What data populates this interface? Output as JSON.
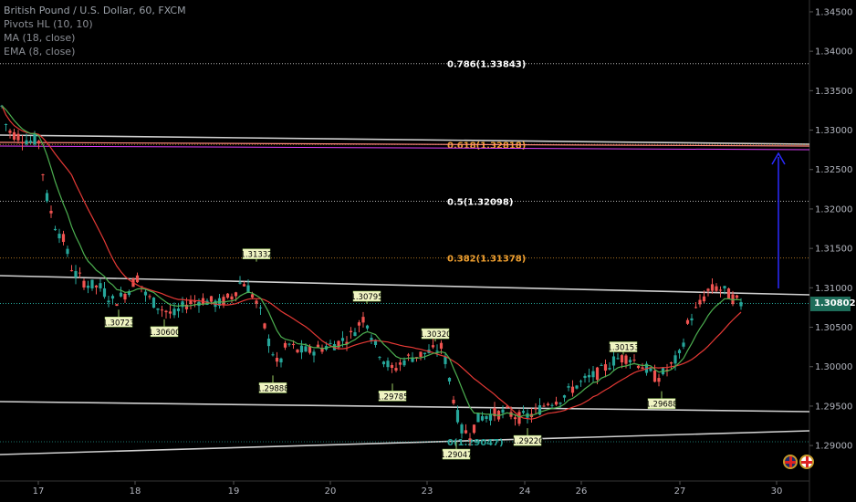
{
  "legend": {
    "title": "British Pound / U.S. Dollar, 60, FXCM",
    "pivots": "Pivots HL (10, 10)",
    "ma": "MA (18, close)",
    "ema": "EMA (8, close)"
  },
  "price_badge": "1.30802",
  "colors": {
    "background": "#000000",
    "up_candle": "#26a69a",
    "down_candle": "#ef5350",
    "ma_line": "#e53935",
    "ema_line": "#4caf50",
    "fib_white": "#ffffff",
    "fib_orange": "#f0a030",
    "arrow": "#2a2aff",
    "trend_lines": "#d0d0d0",
    "badge": "#1e6d5a"
  },
  "chart_data": {
    "type": "candlestick",
    "symbol": "British Pound / U.S. Dollar, 60, FXCM",
    "ylim": [
      1.2855,
      1.3465
    ],
    "y_ticks": [
      "1.34500",
      "1.34000",
      "1.33500",
      "1.33000",
      "1.32500",
      "1.32000",
      "1.31500",
      "1.31000",
      "1.30500",
      "1.30000",
      "1.29500",
      "1.29000"
    ],
    "x_ticks": [
      "17",
      "18",
      "19",
      "20",
      "23",
      "24",
      "26",
      "27",
      "30"
    ],
    "current_price": 1.30802,
    "fib_levels": [
      {
        "label": "0.786(1.33843)",
        "value": 1.33843,
        "color": "white"
      },
      {
        "label": "0.618(1.32818)",
        "value": 1.32818,
        "color": "orange"
      },
      {
        "label": "0.5(1.32098)",
        "value": 1.32098,
        "color": "white"
      },
      {
        "label": "0.382(1.31378)",
        "value": 1.31378,
        "color": "orange"
      },
      {
        "label": "0(1.29047)",
        "value": 1.29047,
        "color": "green"
      }
    ],
    "pivot_labels": [
      {
        "text": "1.31332",
        "value": 1.31332,
        "type": "high"
      },
      {
        "text": "1.30795",
        "value": 1.30795,
        "type": "high"
      },
      {
        "text": "1.30320",
        "value": 1.3032,
        "type": "high"
      },
      {
        "text": "1.30153",
        "value": 1.30153,
        "type": "high"
      },
      {
        "text": "1.30723",
        "value": 1.30723,
        "type": "low"
      },
      {
        "text": "1.30600",
        "value": 1.306,
        "type": "low"
      },
      {
        "text": "1.29888",
        "value": 1.29888,
        "type": "low"
      },
      {
        "text": "1.29785",
        "value": 1.29785,
        "type": "low"
      },
      {
        "text": "1.29047",
        "value": 1.29047,
        "type": "low"
      },
      {
        "text": "1.29220",
        "value": 1.2922,
        "type": "low"
      },
      {
        "text": "1.29688",
        "value": 1.29688,
        "type": "low"
      }
    ],
    "price_path": [
      [
        0,
        1.334
      ],
      [
        8,
        1.33
      ],
      [
        15,
        1.3295
      ],
      [
        25,
        1.329
      ],
      [
        35,
        1.3285
      ],
      [
        42,
        1.329
      ],
      [
        50,
        1.322
      ],
      [
        60,
        1.318
      ],
      [
        70,
        1.316
      ],
      [
        80,
        1.312
      ],
      [
        95,
        1.3105
      ],
      [
        110,
        1.31
      ],
      [
        125,
        1.3082
      ],
      [
        140,
        1.3095
      ],
      [
        150,
        1.3115
      ],
      [
        160,
        1.309
      ],
      [
        175,
        1.3075
      ],
      [
        190,
        1.3065
      ],
      [
        205,
        1.308
      ],
      [
        220,
        1.3085
      ],
      [
        240,
        1.308
      ],
      [
        255,
        1.309
      ],
      [
        265,
        1.311
      ],
      [
        275,
        1.3095
      ],
      [
        285,
        1.307
      ],
      [
        295,
        1.303
      ],
      [
        305,
        1.3
      ],
      [
        315,
        1.303
      ],
      [
        325,
        1.302
      ],
      [
        340,
        1.302
      ],
      [
        355,
        1.3025
      ],
      [
        370,
        1.303
      ],
      [
        385,
        1.304
      ],
      [
        400,
        1.3065
      ],
      [
        410,
        1.303
      ],
      [
        420,
        1.301
      ],
      [
        430,
        1.2995
      ],
      [
        445,
        1.301
      ],
      [
        460,
        1.3015
      ],
      [
        475,
        1.302
      ],
      [
        485,
        1.3025
      ],
      [
        495,
        1.297
      ],
      [
        505,
        1.292
      ],
      [
        515,
        1.2915
      ],
      [
        525,
        1.2935
      ],
      [
        540,
        1.294
      ],
      [
        555,
        1.2942
      ],
      [
        570,
        1.2935
      ],
      [
        585,
        1.294
      ],
      [
        600,
        1.2955
      ],
      [
        615,
        1.296
      ],
      [
        630,
        1.2975
      ],
      [
        645,
        1.2985
      ],
      [
        660,
        1.2995
      ],
      [
        675,
        1.301
      ],
      [
        690,
        1.3012
      ],
      [
        705,
        1.3
      ],
      [
        720,
        1.2985
      ],
      [
        735,
        1.3
      ],
      [
        745,
        1.3015
      ],
      [
        755,
        1.306
      ],
      [
        765,
        1.3075
      ],
      [
        775,
        1.3095
      ],
      [
        785,
        1.31
      ],
      [
        795,
        1.3095
      ],
      [
        805,
        1.3085
      ],
      [
        812,
        1.308
      ]
    ]
  }
}
